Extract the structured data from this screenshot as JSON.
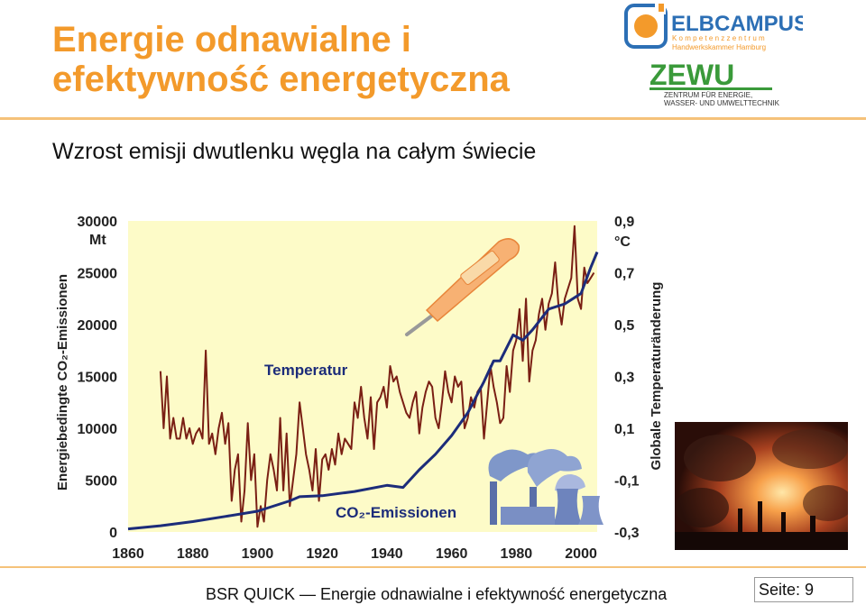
{
  "slide": {
    "title_line1": "Energie odnawialne i",
    "title_line2": "efektywność energetyczna",
    "subtitle": "Wzrost emisji dwutlenku węgla na całym świecie",
    "footer": "BSR QUICK — Energie odnawialne i efektywność energetyczna",
    "page_label": "Seite: 9",
    "accent_color": "#f39a2b"
  },
  "logos": {
    "elbcampus_name": "ELBCAMPUS",
    "elbcampus_tag1": "K o m p e t e n z z e n t r u m",
    "elbcampus_tag2": "Handwerkskammer Hamburg",
    "zewu_name": "ZEWU",
    "zewu_tag1": "ZENTRUM FÜR ENERGIE,",
    "zewu_tag2": "WASSER- UND UMWELTTECHNIK"
  },
  "photo": {
    "icon": "industrial-smoke-photo"
  },
  "chart_data": {
    "type": "line",
    "x_ticks": [
      "1860",
      "1880",
      "1900",
      "1920",
      "1940",
      "1960",
      "1980",
      "2000"
    ],
    "y_left_ticks": [
      "0",
      "5000",
      "10000",
      "15000",
      "20000",
      "25000",
      "30000"
    ],
    "y_right_ticks": [
      "-0,3",
      "-0,1",
      "0,1",
      "0,3",
      "0,5",
      "0,7",
      "0,9"
    ],
    "y_left_unit": "Mt",
    "y_right_unit": "°C",
    "ylabel_left": "Energiebedingte CO₂-Emissionen",
    "ylabel_right": "Globale Temperaturänderung",
    "xlim": [
      1860,
      2005
    ],
    "ylim_left": [
      0,
      30000
    ],
    "ylim_right": [
      -0.3,
      0.9
    ],
    "grid": false,
    "background_color": "#fdfbc8",
    "series": [
      {
        "name": "Temperatur",
        "axis": "right",
        "color": "#7a1f14",
        "x": [
          1870,
          1871,
          1872,
          1873,
          1874,
          1875,
          1876,
          1877,
          1878,
          1879,
          1880,
          1881,
          1882,
          1883,
          1884,
          1885,
          1886,
          1887,
          1888,
          1889,
          1890,
          1891,
          1892,
          1893,
          1894,
          1895,
          1896,
          1897,
          1898,
          1899,
          1900,
          1901,
          1902,
          1903,
          1904,
          1905,
          1906,
          1907,
          1908,
          1909,
          1910,
          1911,
          1912,
          1913,
          1914,
          1915,
          1916,
          1917,
          1918,
          1919,
          1920,
          1921,
          1922,
          1923,
          1924,
          1925,
          1926,
          1927,
          1928,
          1929,
          1930,
          1931,
          1932,
          1933,
          1934,
          1935,
          1936,
          1937,
          1938,
          1939,
          1940,
          1941,
          1942,
          1943,
          1944,
          1945,
          1946,
          1947,
          1948,
          1949,
          1950,
          1951,
          1952,
          1953,
          1954,
          1955,
          1956,
          1957,
          1958,
          1959,
          1960,
          1961,
          1962,
          1963,
          1964,
          1965,
          1966,
          1967,
          1968,
          1969,
          1970,
          1971,
          1972,
          1973,
          1974,
          1975,
          1976,
          1977,
          1978,
          1979,
          1980,
          1981,
          1982,
          1983,
          1984,
          1985,
          1986,
          1987,
          1988,
          1989,
          1990,
          1991,
          1992,
          1993,
          1994,
          1995,
          1996,
          1997,
          1998,
          1999,
          2000,
          2001,
          2002,
          2003,
          2004
        ],
        "values": [
          0.32,
          0.1,
          0.3,
          0.06,
          0.14,
          0.06,
          0.06,
          0.14,
          0.06,
          0.1,
          0.04,
          0.08,
          0.1,
          0.06,
          0.4,
          0.04,
          0.08,
          0.0,
          0.1,
          0.16,
          0.04,
          0.12,
          -0.18,
          -0.06,
          0.0,
          -0.26,
          -0.14,
          0.12,
          -0.1,
          0.0,
          -0.28,
          -0.2,
          -0.26,
          -0.1,
          0.0,
          -0.06,
          -0.14,
          0.14,
          -0.14,
          0.08,
          -0.2,
          -0.1,
          0.0,
          0.2,
          0.1,
          0.0,
          -0.06,
          -0.14,
          0.02,
          -0.18,
          -0.02,
          0.0,
          -0.06,
          0.02,
          -0.04,
          0.08,
          0.0,
          0.06,
          0.04,
          0.02,
          0.2,
          0.14,
          0.26,
          0.14,
          0.06,
          0.22,
          0.02,
          0.2,
          0.22,
          0.26,
          0.18,
          0.34,
          0.28,
          0.3,
          0.24,
          0.2,
          0.16,
          0.14,
          0.2,
          0.24,
          0.08,
          0.18,
          0.24,
          0.28,
          0.26,
          0.14,
          0.1,
          0.2,
          0.32,
          0.24,
          0.2,
          0.3,
          0.26,
          0.28,
          0.1,
          0.14,
          0.22,
          0.18,
          0.24,
          0.26,
          0.06,
          0.2,
          0.34,
          0.26,
          0.2,
          0.12,
          0.14,
          0.34,
          0.24,
          0.4,
          0.44,
          0.56,
          0.36,
          0.6,
          0.28,
          0.4,
          0.44,
          0.54,
          0.6,
          0.48,
          0.58,
          0.62,
          0.74,
          0.58,
          0.5,
          0.6,
          0.64,
          0.68,
          0.88,
          0.6,
          0.56,
          0.72,
          0.66,
          0.68,
          0.7
        ]
      },
      {
        "name": "CO₂-Emissionen",
        "axis": "left",
        "color": "#1c2c7a",
        "x": [
          1860,
          1870,
          1880,
          1890,
          1900,
          1910,
          1913,
          1920,
          1930,
          1940,
          1945,
          1950,
          1955,
          1960,
          1965,
          1970,
          1973,
          1975,
          1979,
          1982,
          1985,
          1990,
          1995,
          2000,
          2003,
          2005
        ],
        "values": [
          300,
          600,
          1000,
          1500,
          2000,
          3000,
          3400,
          3500,
          3900,
          4500,
          4300,
          6000,
          7500,
          9300,
          11500,
          14500,
          16500,
          16500,
          19000,
          18500,
          19500,
          21500,
          22000,
          23000,
          25500,
          27000
        ]
      }
    ]
  }
}
